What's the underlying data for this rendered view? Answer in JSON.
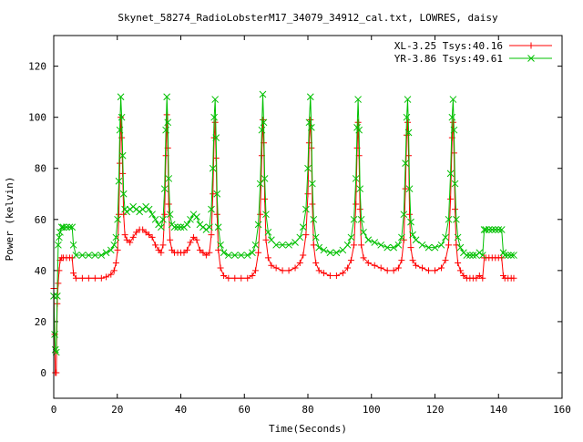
{
  "chart_data": {
    "type": "line",
    "title": "Skynet_58274_RadioLobsterM17_34079_34912_cal.txt, LOWRES, daisy",
    "xlabel": "Time(Seconds)",
    "ylabel": "Power (kelvin)",
    "xlim": [
      0,
      160
    ],
    "ylim": [
      -10,
      132
    ],
    "xticks": [
      0,
      20,
      40,
      60,
      80,
      100,
      120,
      140,
      160
    ],
    "yticks": [
      0,
      20,
      40,
      60,
      80,
      100,
      120
    ],
    "grid": false,
    "legend_position": "top-right",
    "series": [
      {
        "name": "XL-3.25 Tsys:40.16",
        "color": "#ff0000",
        "marker": "plus",
        "points": [
          [
            0,
            33
          ],
          [
            0.3,
            15
          ],
          [
            0.5,
            0
          ],
          [
            0.8,
            0
          ],
          [
            1.1,
            27
          ],
          [
            1.4,
            35
          ],
          [
            1.7,
            40
          ],
          [
            2,
            44
          ],
          [
            2.5,
            45
          ],
          [
            3,
            45
          ],
          [
            4,
            45
          ],
          [
            5,
            45
          ],
          [
            5.8,
            45
          ],
          [
            6.2,
            39
          ],
          [
            7,
            37
          ],
          [
            9,
            37
          ],
          [
            11,
            37
          ],
          [
            13,
            37
          ],
          [
            15,
            37
          ],
          [
            16.5,
            37.5
          ],
          [
            18,
            38.5
          ],
          [
            19,
            40
          ],
          [
            19.6,
            43
          ],
          [
            20.1,
            48
          ],
          [
            20.5,
            62
          ],
          [
            20.8,
            82
          ],
          [
            21.1,
            100
          ],
          [
            21.4,
            92
          ],
          [
            21.7,
            78
          ],
          [
            22,
            62
          ],
          [
            22.4,
            54
          ],
          [
            23,
            52
          ],
          [
            24,
            51
          ],
          [
            25,
            53
          ],
          [
            26,
            55
          ],
          [
            27,
            56
          ],
          [
            28,
            56
          ],
          [
            29,
            55
          ],
          [
            30,
            54
          ],
          [
            31,
            53
          ],
          [
            32,
            50
          ],
          [
            33,
            48
          ],
          [
            33.8,
            47
          ],
          [
            34.4,
            50
          ],
          [
            34.9,
            62
          ],
          [
            35.3,
            85
          ],
          [
            35.6,
            101
          ],
          [
            35.9,
            88
          ],
          [
            36.2,
            66
          ],
          [
            36.6,
            52
          ],
          [
            37.2,
            48
          ],
          [
            38,
            47
          ],
          [
            39,
            47
          ],
          [
            40,
            47
          ],
          [
            41,
            47
          ],
          [
            42,
            48
          ],
          [
            43,
            51
          ],
          [
            44,
            53
          ],
          [
            45,
            52
          ],
          [
            46,
            48
          ],
          [
            47,
            47
          ],
          [
            48,
            46
          ],
          [
            49,
            47
          ],
          [
            49.6,
            54
          ],
          [
            50.1,
            70
          ],
          [
            50.5,
            92
          ],
          [
            50.8,
            98
          ],
          [
            51.1,
            84
          ],
          [
            51.4,
            62
          ],
          [
            51.8,
            48
          ],
          [
            52.5,
            41
          ],
          [
            53.5,
            38
          ],
          [
            55,
            37
          ],
          [
            57,
            37
          ],
          [
            59,
            37
          ],
          [
            61,
            37
          ],
          [
            62.5,
            38
          ],
          [
            63.5,
            40
          ],
          [
            64.4,
            47
          ],
          [
            65,
            62
          ],
          [
            65.5,
            85
          ],
          [
            65.8,
            99
          ],
          [
            66.1,
            90
          ],
          [
            66.4,
            68
          ],
          [
            66.8,
            52
          ],
          [
            67.5,
            45
          ],
          [
            68.5,
            42
          ],
          [
            70,
            41
          ],
          [
            72,
            40
          ],
          [
            74,
            40
          ],
          [
            76,
            41
          ],
          [
            77.5,
            43
          ],
          [
            78.5,
            46
          ],
          [
            79.4,
            54
          ],
          [
            80,
            70
          ],
          [
            80.4,
            90
          ],
          [
            80.8,
            99
          ],
          [
            81.1,
            88
          ],
          [
            81.4,
            66
          ],
          [
            81.8,
            50
          ],
          [
            82.5,
            43
          ],
          [
            83.5,
            40
          ],
          [
            85,
            39
          ],
          [
            87,
            38
          ],
          [
            89,
            38
          ],
          [
            91,
            39
          ],
          [
            92.5,
            41
          ],
          [
            93.6,
            44
          ],
          [
            94.5,
            50
          ],
          [
            95.1,
            66
          ],
          [
            95.5,
            88
          ],
          [
            95.8,
            98
          ],
          [
            96.1,
            85
          ],
          [
            96.4,
            64
          ],
          [
            96.8,
            50
          ],
          [
            97.5,
            45
          ],
          [
            99,
            43
          ],
          [
            101,
            42
          ],
          [
            103,
            41
          ],
          [
            105,
            40
          ],
          [
            107,
            40
          ],
          [
            108.5,
            41
          ],
          [
            109.5,
            44
          ],
          [
            110.2,
            52
          ],
          [
            110.7,
            72
          ],
          [
            111.1,
            93
          ],
          [
            111.4,
            98
          ],
          [
            111.7,
            85
          ],
          [
            112,
            62
          ],
          [
            112.4,
            49
          ],
          [
            113,
            44
          ],
          [
            114,
            42
          ],
          [
            116,
            41
          ],
          [
            118,
            40
          ],
          [
            120,
            40
          ],
          [
            122,
            41
          ],
          [
            123.3,
            44
          ],
          [
            124.3,
            50
          ],
          [
            124.9,
            68
          ],
          [
            125.4,
            92
          ],
          [
            125.7,
            98
          ],
          [
            126,
            86
          ],
          [
            126.3,
            64
          ],
          [
            126.7,
            50
          ],
          [
            127.2,
            43
          ],
          [
            128,
            40
          ],
          [
            129,
            38
          ],
          [
            130,
            37
          ],
          [
            131,
            37
          ],
          [
            132,
            37
          ],
          [
            133,
            37
          ],
          [
            134,
            38
          ],
          [
            135,
            37
          ],
          [
            135.5,
            45
          ],
          [
            136,
            45
          ],
          [
            137,
            45
          ],
          [
            138,
            45
          ],
          [
            139,
            45
          ],
          [
            140,
            45
          ],
          [
            141,
            45
          ],
          [
            141.5,
            38
          ],
          [
            142,
            37
          ],
          [
            143,
            37
          ],
          [
            144,
            37
          ],
          [
            144.8,
            37
          ]
        ]
      },
      {
        "name": "YR-3.86 Tsys:49.61",
        "color": "#00c000",
        "marker": "cross",
        "points": [
          [
            0,
            30
          ],
          [
            0.3,
            15
          ],
          [
            0.5,
            9
          ],
          [
            0.8,
            8
          ],
          [
            1.1,
            30
          ],
          [
            1.4,
            50
          ],
          [
            1.7,
            53
          ],
          [
            2,
            55
          ],
          [
            2.5,
            57
          ],
          [
            3,
            57
          ],
          [
            4,
            57
          ],
          [
            5,
            57
          ],
          [
            5.8,
            57
          ],
          [
            6.2,
            50
          ],
          [
            7,
            46
          ],
          [
            9,
            46
          ],
          [
            11,
            46
          ],
          [
            13,
            46
          ],
          [
            15,
            46
          ],
          [
            16.5,
            47
          ],
          [
            18,
            48
          ],
          [
            19,
            50
          ],
          [
            19.6,
            53
          ],
          [
            20.1,
            60
          ],
          [
            20.5,
            75
          ],
          [
            20.8,
            95
          ],
          [
            21.1,
            108
          ],
          [
            21.4,
            100
          ],
          [
            21.7,
            85
          ],
          [
            22,
            70
          ],
          [
            22.4,
            64
          ],
          [
            23,
            63
          ],
          [
            24,
            64
          ],
          [
            25,
            65
          ],
          [
            26,
            64
          ],
          [
            27,
            63
          ],
          [
            28,
            64
          ],
          [
            29,
            65
          ],
          [
            30,
            64
          ],
          [
            31,
            62
          ],
          [
            32,
            60
          ],
          [
            33,
            58
          ],
          [
            33.8,
            57
          ],
          [
            34.4,
            60
          ],
          [
            34.9,
            72
          ],
          [
            35.3,
            95
          ],
          [
            35.6,
            108
          ],
          [
            35.9,
            98
          ],
          [
            36.2,
            76
          ],
          [
            36.6,
            62
          ],
          [
            37.2,
            58
          ],
          [
            38,
            57
          ],
          [
            39,
            57
          ],
          [
            40,
            57
          ],
          [
            41,
            57
          ],
          [
            42,
            58
          ],
          [
            43,
            60
          ],
          [
            44,
            62
          ],
          [
            45,
            61
          ],
          [
            46,
            58
          ],
          [
            47,
            57
          ],
          [
            48,
            56
          ],
          [
            49,
            57
          ],
          [
            49.6,
            64
          ],
          [
            50.1,
            80
          ],
          [
            50.5,
            100
          ],
          [
            50.8,
            107
          ],
          [
            51.1,
            92
          ],
          [
            51.4,
            70
          ],
          [
            51.8,
            57
          ],
          [
            52.5,
            50
          ],
          [
            53.5,
            47
          ],
          [
            55,
            46
          ],
          [
            57,
            46
          ],
          [
            59,
            46
          ],
          [
            61,
            46
          ],
          [
            62.5,
            47
          ],
          [
            63.5,
            50
          ],
          [
            64.4,
            58
          ],
          [
            65,
            74
          ],
          [
            65.5,
            95
          ],
          [
            65.8,
            109
          ],
          [
            66.1,
            98
          ],
          [
            66.4,
            76
          ],
          [
            66.8,
            62
          ],
          [
            67.5,
            55
          ],
          [
            68.5,
            52
          ],
          [
            70,
            50
          ],
          [
            72,
            50
          ],
          [
            74,
            50
          ],
          [
            76,
            51
          ],
          [
            77.5,
            53
          ],
          [
            78.5,
            57
          ],
          [
            79.4,
            64
          ],
          [
            80,
            80
          ],
          [
            80.4,
            98
          ],
          [
            80.8,
            108
          ],
          [
            81.1,
            96
          ],
          [
            81.4,
            74
          ],
          [
            81.8,
            60
          ],
          [
            82.5,
            53
          ],
          [
            83.5,
            49
          ],
          [
            85,
            48
          ],
          [
            87,
            47
          ],
          [
            89,
            47
          ],
          [
            91,
            48
          ],
          [
            92.5,
            50
          ],
          [
            93.6,
            53
          ],
          [
            94.5,
            60
          ],
          [
            95.1,
            76
          ],
          [
            95.5,
            96
          ],
          [
            95.8,
            107
          ],
          [
            96.1,
            95
          ],
          [
            96.4,
            72
          ],
          [
            96.8,
            60
          ],
          [
            97.5,
            55
          ],
          [
            99,
            52
          ],
          [
            101,
            51
          ],
          [
            103,
            50
          ],
          [
            105,
            49
          ],
          [
            107,
            49
          ],
          [
            108.5,
            50
          ],
          [
            109.5,
            53
          ],
          [
            110.2,
            62
          ],
          [
            110.7,
            82
          ],
          [
            111.1,
            100
          ],
          [
            111.4,
            107
          ],
          [
            111.7,
            94
          ],
          [
            112,
            72
          ],
          [
            112.4,
            59
          ],
          [
            113,
            54
          ],
          [
            114,
            52
          ],
          [
            116,
            50
          ],
          [
            118,
            49
          ],
          [
            120,
            49
          ],
          [
            122,
            50
          ],
          [
            123.3,
            53
          ],
          [
            124.3,
            60
          ],
          [
            124.9,
            78
          ],
          [
            125.4,
            100
          ],
          [
            125.7,
            107
          ],
          [
            126,
            95
          ],
          [
            126.3,
            74
          ],
          [
            126.7,
            60
          ],
          [
            127.2,
            53
          ],
          [
            128,
            49
          ],
          [
            129,
            47
          ],
          [
            130,
            46
          ],
          [
            131,
            46
          ],
          [
            132,
            46
          ],
          [
            133,
            46
          ],
          [
            134,
            47
          ],
          [
            135,
            46
          ],
          [
            135.5,
            56
          ],
          [
            136,
            56
          ],
          [
            137,
            56
          ],
          [
            138,
            56
          ],
          [
            139,
            56
          ],
          [
            140,
            56
          ],
          [
            141,
            56
          ],
          [
            141.5,
            47
          ],
          [
            142,
            46
          ],
          [
            143,
            46
          ],
          [
            144,
            46
          ],
          [
            144.8,
            46
          ]
        ]
      }
    ]
  }
}
